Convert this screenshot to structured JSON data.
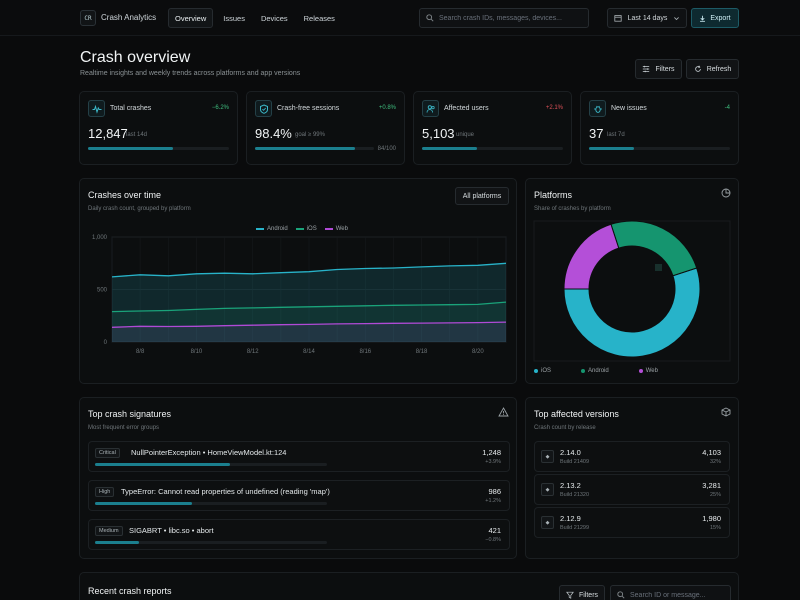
{
  "app": {
    "logo_text": "CR",
    "name": "Crash Analytics"
  },
  "nav": [
    {
      "label": "Overview",
      "active": true
    },
    {
      "label": "Issues",
      "active": false
    },
    {
      "label": "Devices",
      "active": false
    },
    {
      "label": "Releases",
      "active": false
    }
  ],
  "search": {
    "placeholder": "Search crash IDs, messages, devices..."
  },
  "date_range": {
    "label": "Last 14 days"
  },
  "export_label": "Export",
  "header": {
    "title": "Crash overview",
    "subtitle": "Realtime insights and weekly trends across platforms and app versions",
    "filters_label": "Filters",
    "refresh_label": "Refresh"
  },
  "kpis": [
    {
      "label": "Total crashes",
      "delta": "−6.2%",
      "delta_color": "#3fbf7f",
      "value": "12,847",
      "note": "last 14d",
      "progress": 0.6,
      "extra": "",
      "icon": "pulse-icon"
    },
    {
      "label": "Crash-free sessions",
      "delta": "+0.8%",
      "delta_color": "#3fbf7f",
      "value": "98.4%",
      "note": "goal ≥ 99%",
      "progress": 0.84,
      "extra": "84/100",
      "icon": "shield-icon"
    },
    {
      "label": "Affected users",
      "delta": "+2.1%",
      "delta_color": "#e0525a",
      "value": "5,103",
      "note": "unique",
      "progress": 0.39,
      "extra": "",
      "icon": "users-icon"
    },
    {
      "label": "New issues",
      "delta": "-4",
      "delta_color": "#3fbf7f",
      "value": "37",
      "note": "last 7d",
      "progress": 0.32,
      "extra": "",
      "icon": "bug-icon"
    }
  ],
  "crashes_chart": {
    "title": "Crashes over time",
    "subtitle": "Daily crash count, grouped by platform",
    "platform_filter": "All platforms"
  },
  "chart_data": {
    "type": "area",
    "x": [
      "8/7",
      "8/8",
      "8/9",
      "8/10",
      "8/11",
      "8/12",
      "8/13",
      "8/14",
      "8/15",
      "8/16",
      "8/17",
      "8/18",
      "8/19",
      "8/20",
      "8/21"
    ],
    "x_tick_labels": [
      "8/8",
      "8/10",
      "8/12",
      "8/14",
      "8/16",
      "8/18",
      "8/20"
    ],
    "ylim": [
      0,
      1000
    ],
    "y_ticks": [
      "0",
      "500",
      "1,000"
    ],
    "series": [
      {
        "name": "Android",
        "color": "#28b3c9",
        "values": [
          620,
          640,
          630,
          650,
          655,
          650,
          660,
          670,
          690,
          700,
          705,
          715,
          725,
          730,
          750
        ]
      },
      {
        "name": "iOS",
        "color": "#1aa37a",
        "values": [
          290,
          295,
          300,
          310,
          320,
          325,
          330,
          335,
          340,
          345,
          350,
          352,
          355,
          358,
          380
        ]
      },
      {
        "name": "Web",
        "color": "#b04ad6",
        "values": [
          140,
          150,
          148,
          150,
          155,
          160,
          165,
          168,
          172,
          175,
          178,
          180,
          182,
          185,
          190
        ]
      }
    ],
    "grid": true,
    "legend": "top-center"
  },
  "platforms": {
    "title": "Platforms",
    "subtitle": "Share of crashes by platform",
    "slices": [
      {
        "name": "iOS",
        "value": 55,
        "color": "#27b3c9"
      },
      {
        "name": "Android",
        "value": 25,
        "color": "#15956f"
      },
      {
        "name": "Web",
        "value": 20,
        "color": "#b44fd8"
      }
    ]
  },
  "signatures": {
    "title": "Top crash signatures",
    "subtitle": "Most frequent error groups",
    "items": [
      {
        "severity": "Critical",
        "title": "NullPointerException • HomeViewModel.kt:124",
        "count": "1,248",
        "delta": "+3.9%",
        "share": 0.58
      },
      {
        "severity": "High",
        "title": "TypeError: Cannot read properties of undefined (reading 'map')",
        "count": "986",
        "delta": "+1.2%",
        "share": 0.42
      },
      {
        "severity": "Medium",
        "title": "SIGABRT • libc.so • abort",
        "count": "421",
        "delta": "−0.8%",
        "share": 0.19
      }
    ]
  },
  "versions": {
    "title": "Top affected versions",
    "subtitle": "Crash count by release",
    "items": [
      {
        "version": "2.14.0",
        "build": "Build 21409",
        "count": "4,103",
        "pct": "32%"
      },
      {
        "version": "2.13.2",
        "build": "Build 21320",
        "count": "3,281",
        "pct": "25%"
      },
      {
        "version": "2.12.9",
        "build": "Build 21299",
        "count": "1,980",
        "pct": "15%"
      }
    ]
  },
  "reports": {
    "title": "Recent crash reports",
    "filters_label": "Filters",
    "search_placeholder": "Search ID or message..."
  }
}
